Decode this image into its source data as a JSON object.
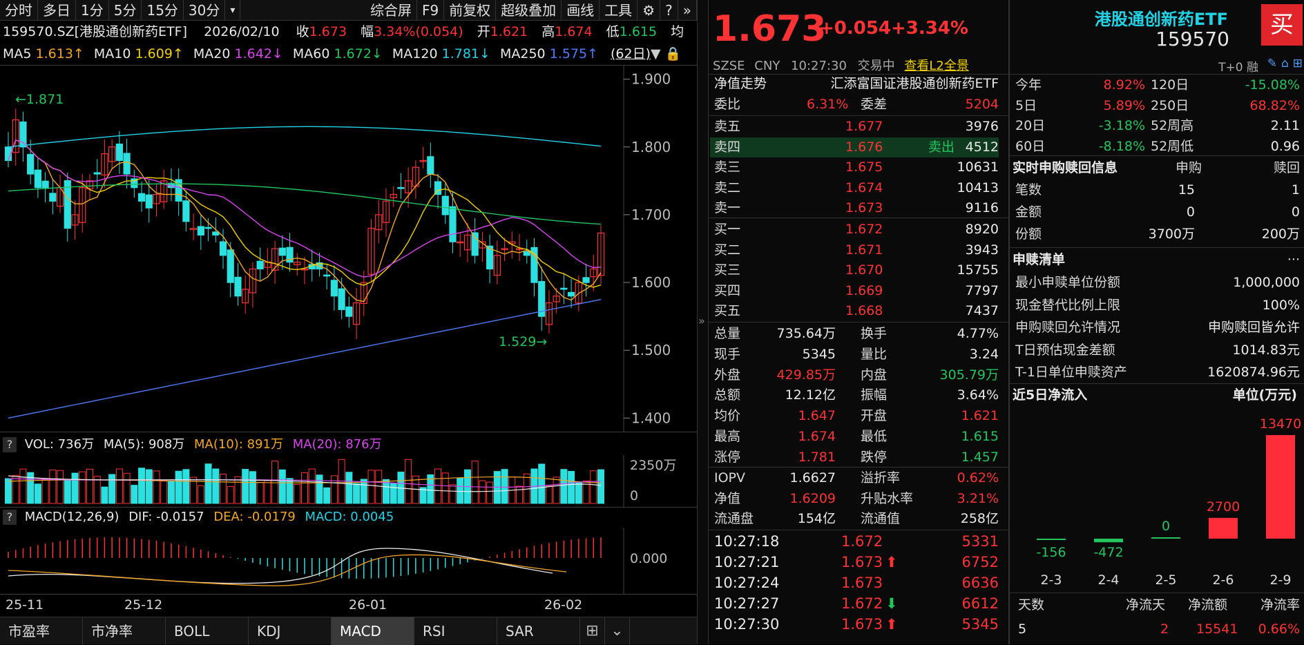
{
  "toolbar": {
    "left_tabs": [
      "分时",
      "多日",
      "1分",
      "5分",
      "15分",
      "30分",
      "▾"
    ],
    "right_tabs": [
      "综合屏",
      "F9",
      "前复权",
      "超级叠加",
      "画线",
      "工具"
    ]
  },
  "info": {
    "code_name": "159570.SZ[港股通创新药ETF]",
    "date": "2026/02/10",
    "close_label": "收",
    "close": "1.673",
    "amp_label": "幅",
    "amp": "3.34%(0.054)",
    "open_label": "开",
    "open": "1.621",
    "high_label": "高",
    "high": "1.674",
    "low_label": "低",
    "low": "1.615",
    "more": "均"
  },
  "ma": [
    {
      "label": "MA5",
      "value": "1.613↑",
      "color": "#f5a623"
    },
    {
      "label": "MA10",
      "value": "1.609↑",
      "color": "#f2d000"
    },
    {
      "label": "MA20",
      "value": "1.642↓",
      "color": "#d946ef"
    },
    {
      "label": "MA60",
      "value": "1.672↓",
      "color": "#22c55e"
    },
    {
      "label": "MA120",
      "value": "1.781↓",
      "color": "#22d3e6"
    },
    {
      "label": "MA250",
      "value": "1.575↑",
      "color": "#4f7cff"
    }
  ],
  "period_select": "(62日)",
  "price_axis": [
    "1.900",
    "1.800",
    "1.700",
    "1.600",
    "1.500",
    "1.400"
  ],
  "annot_high": "1.871",
  "annot_low": "1.529",
  "vol": {
    "label": "VOL: 736万",
    "ma5": "MA(5): 908万",
    "ma10": "MA(10): 891万",
    "ma20": "MA(20): 876万",
    "axis_top": "2350万",
    "axis_zero": "0"
  },
  "macd": {
    "label": "MACD(12,26,9)",
    "dif": "DIF: -0.0157",
    "dea": "DEA: -0.0179",
    "macd": "MACD: 0.0045",
    "axis": "0.000"
  },
  "date_axis": [
    "25-11",
    "25-12",
    "26-01",
    "26-02"
  ],
  "bottom_tabs": [
    "市盈率",
    "市净率",
    "BOLL",
    "KDJ",
    "MACD",
    "RSI",
    "SAR"
  ],
  "quote": {
    "price": "1.673",
    "change": "+0.054",
    "pct": "+3.34%",
    "exchange": "SZSE",
    "currency": "CNY",
    "time": "10:27:30",
    "status": "交易中",
    "l2": "查看L2全景",
    "name": "港股通创新药ETF",
    "code": "159570",
    "buy_btn": "买",
    "t0": "T+0 融"
  },
  "nav_row": {
    "label": "净值走势",
    "name": "汇添富国证港股通创新药ETF"
  },
  "commission": {
    "ratio_label": "委比",
    "ratio": "6.31%",
    "diff_label": "委差",
    "diff": "5204"
  },
  "sell": [
    {
      "label": "卖五",
      "price": "1.677",
      "vol": "3976",
      "tag": ""
    },
    {
      "label": "卖四",
      "price": "1.676",
      "vol": "4512",
      "tag": "卖出"
    },
    {
      "label": "卖三",
      "price": "1.675",
      "vol": "10631",
      "tag": ""
    },
    {
      "label": "卖二",
      "price": "1.674",
      "vol": "10413",
      "tag": ""
    },
    {
      "label": "卖一",
      "price": "1.673",
      "vol": "9116",
      "tag": ""
    }
  ],
  "buy": [
    {
      "label": "买一",
      "price": "1.672",
      "vol": "8920"
    },
    {
      "label": "买二",
      "price": "1.671",
      "vol": "3943"
    },
    {
      "label": "买三",
      "price": "1.670",
      "vol": "15755"
    },
    {
      "label": "买四",
      "price": "1.669",
      "vol": "7797"
    },
    {
      "label": "买五",
      "price": "1.668",
      "vol": "7437"
    }
  ],
  "stats": [
    [
      {
        "k": "总量",
        "v": "735.64万",
        "c": "wt"
      },
      {
        "k": "换手",
        "v": "4.77%",
        "c": "wt"
      }
    ],
    [
      {
        "k": "现手",
        "v": "5345",
        "c": "wt"
      },
      {
        "k": "量比",
        "v": "3.24",
        "c": "wt"
      }
    ],
    [
      {
        "k": "外盘",
        "v": "429.85万",
        "c": "up"
      },
      {
        "k": "内盘",
        "v": "305.79万",
        "c": "dn"
      }
    ],
    [
      {
        "k": "总额",
        "v": "12.12亿",
        "c": "wt"
      },
      {
        "k": "振幅",
        "v": "3.64%",
        "c": "wt"
      }
    ],
    [
      {
        "k": "均价",
        "v": "1.647",
        "c": "up"
      },
      {
        "k": "开盘",
        "v": "1.621",
        "c": "up"
      }
    ],
    [
      {
        "k": "最高",
        "v": "1.674",
        "c": "up"
      },
      {
        "k": "最低",
        "v": "1.615",
        "c": "dn"
      }
    ],
    [
      {
        "k": "涨停",
        "v": "1.781",
        "c": "up"
      },
      {
        "k": "跌停",
        "v": "1.457",
        "c": "dn"
      }
    ]
  ],
  "iopv": [
    [
      {
        "k": "IOPV",
        "v": "1.6627",
        "c": "wt"
      },
      {
        "k": "溢折率",
        "v": "0.62%",
        "c": "up"
      }
    ],
    [
      {
        "k": "净值",
        "v": "1.6209",
        "c": "up"
      },
      {
        "k": "升贴水率",
        "v": "3.21%",
        "c": "up"
      }
    ],
    [
      {
        "k": "流通盘",
        "v": "154亿",
        "c": "wt"
      },
      {
        "k": "流通值",
        "v": "258亿",
        "c": "wt"
      }
    ]
  ],
  "ticks": [
    {
      "time": "10:27:18",
      "price": "1.672",
      "arrow": "",
      "vol": "5331"
    },
    {
      "time": "10:27:21",
      "price": "1.673",
      "arrow": "up",
      "vol": "6752"
    },
    {
      "time": "10:27:24",
      "price": "1.673",
      "arrow": "",
      "vol": "6636"
    },
    {
      "time": "10:27:27",
      "price": "1.672",
      "arrow": "dn",
      "vol": "6612"
    },
    {
      "time": "10:27:30",
      "price": "1.673",
      "arrow": "up",
      "vol": "5345"
    }
  ],
  "perf": [
    [
      {
        "k": "今年",
        "v": "8.92%",
        "c": "up"
      },
      {
        "k": "120日",
        "v": "-15.08%",
        "c": "dn"
      }
    ],
    [
      {
        "k": "5日",
        "v": "5.89%",
        "c": "up"
      },
      {
        "k": "250日",
        "v": "68.82%",
        "c": "up"
      }
    ],
    [
      {
        "k": "20日",
        "v": "-3.18%",
        "c": "dn"
      },
      {
        "k": "52周高",
        "v": "2.11",
        "c": "wt"
      }
    ],
    [
      {
        "k": "60日",
        "v": "-8.18%",
        "c": "dn"
      },
      {
        "k": "52周低",
        "v": "0.96",
        "c": "wt"
      }
    ]
  ],
  "subscribe": {
    "title": "实时申购赎回信息",
    "col1": "申购",
    "col2": "赎回",
    "rows": [
      {
        "k": "笔数",
        "a": "15",
        "b": "1"
      },
      {
        "k": "金额",
        "a": "0",
        "b": "0"
      },
      {
        "k": "份额",
        "a": "3700万",
        "b": "200万"
      }
    ]
  },
  "list": {
    "title": "申赎清单",
    "more": "···",
    "rows": [
      {
        "k": "最小申赎单位份额",
        "v": "1,000,000"
      },
      {
        "k": "现金替代比例上限",
        "v": "100%"
      },
      {
        "k": "申购赎回允许情况",
        "v": "申购赎回皆允许"
      },
      {
        "k": "T日预估现金差额",
        "v": "1014.83元"
      },
      {
        "k": "T-1日单位申赎资产",
        "v": "1620874.96元"
      }
    ]
  },
  "flow": {
    "title": "近5日净流入",
    "unit": "单位(万元)",
    "categories": [
      "2-3",
      "2-4",
      "2-5",
      "2-6",
      "2-9"
    ],
    "values": [
      -156,
      -472,
      0,
      2700,
      13470
    ],
    "labels": [
      "-156",
      "-472",
      "0",
      "2700",
      "13470"
    ]
  },
  "flow_summary": {
    "h1": "天数",
    "h2": "净流天",
    "h3": "净流额",
    "h4": "净流率",
    "v1": "5",
    "v2": "2",
    "v3": "15541",
    "v4": "0.66%"
  },
  "colors": {
    "up": "#ff3333",
    "down": "#22c55e",
    "cyan": "#22d3e6",
    "bg": "#000000"
  }
}
